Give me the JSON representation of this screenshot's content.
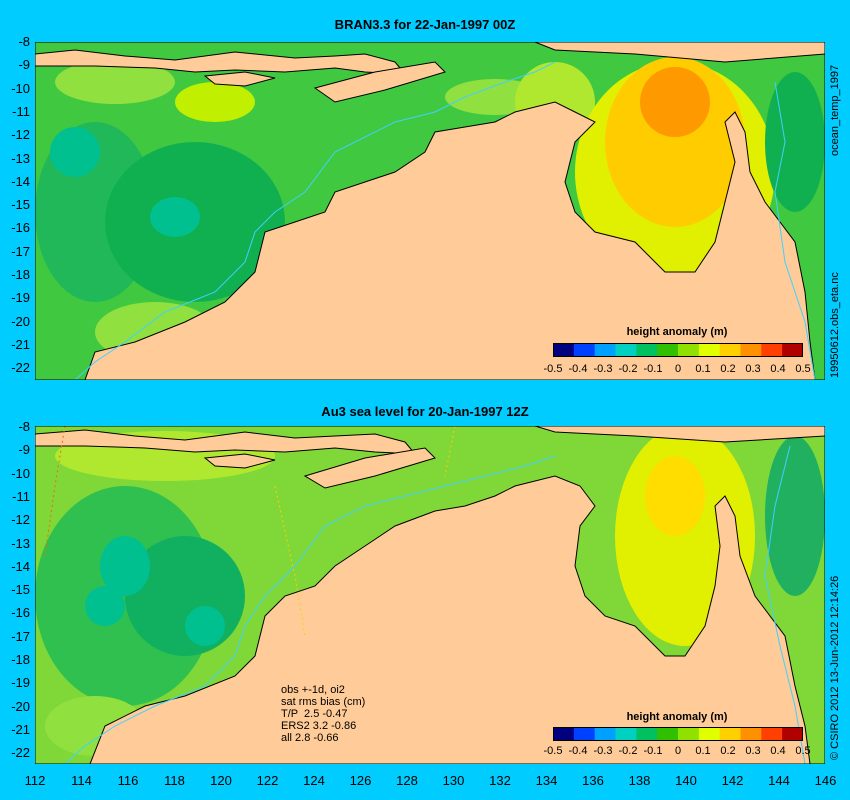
{
  "panels": [
    {
      "title": "BRAN3.3 for 22-Jan-1997 00Z",
      "colorbar_title": "height anomaly (m)",
      "side_label": "ocean_temp_1997"
    },
    {
      "title": "Au3 sea level  for 20-Jan-1997 12Z",
      "colorbar_title": "height anomaly (m)",
      "side_label": "",
      "stats_lines": [
        "obs +-1d, oi2",
        "sat rms bias (cm)",
        "T/P  2.5 -0.47",
        "ERS2 3.2 -0.86",
        "all 2.8 -0.66"
      ]
    }
  ],
  "middle_side_label": "19950612.obs_eta.nc",
  "bottom_side_label": "© CSIRO 2012  13-Jun-2012 12:14:26",
  "y_ticks": [
    "-8",
    "-9",
    "-10",
    "-11",
    "-12",
    "-13",
    "-14",
    "-15",
    "-16",
    "-17",
    "-18",
    "-19",
    "-20",
    "-21",
    "-22"
  ],
  "x_ticks": [
    "112",
    "114",
    "116",
    "118",
    "120",
    "122",
    "124",
    "126",
    "128",
    "130",
    "132",
    "134",
    "136",
    "138",
    "140",
    "142",
    "144",
    "146"
  ],
  "colorbar_ticks": [
    "-0.5",
    "-0.4",
    "-0.3",
    "-0.2",
    "-0.1",
    "0",
    "0.1",
    "0.2",
    "0.3",
    "0.4",
    "0.5"
  ],
  "colorbar_colors": [
    "#00007f",
    "#0040ff",
    "#00a0ff",
    "#00d0c0",
    "#00c060",
    "#30c000",
    "#90e000",
    "#e0ff00",
    "#ffd000",
    "#ff9000",
    "#ff4000",
    "#b00000"
  ],
  "colors": {
    "frame_bg": "#00ccff",
    "land": "#ffcc99",
    "ocean_base": "#40c840",
    "ocean_light": "#90e040",
    "ocean_dark": "#10b050",
    "teal": "#00c090",
    "yellow": "#e0f000",
    "gold": "#ffcc00",
    "orange": "#ff9900",
    "shelf_line": "#40d0ff"
  }
}
